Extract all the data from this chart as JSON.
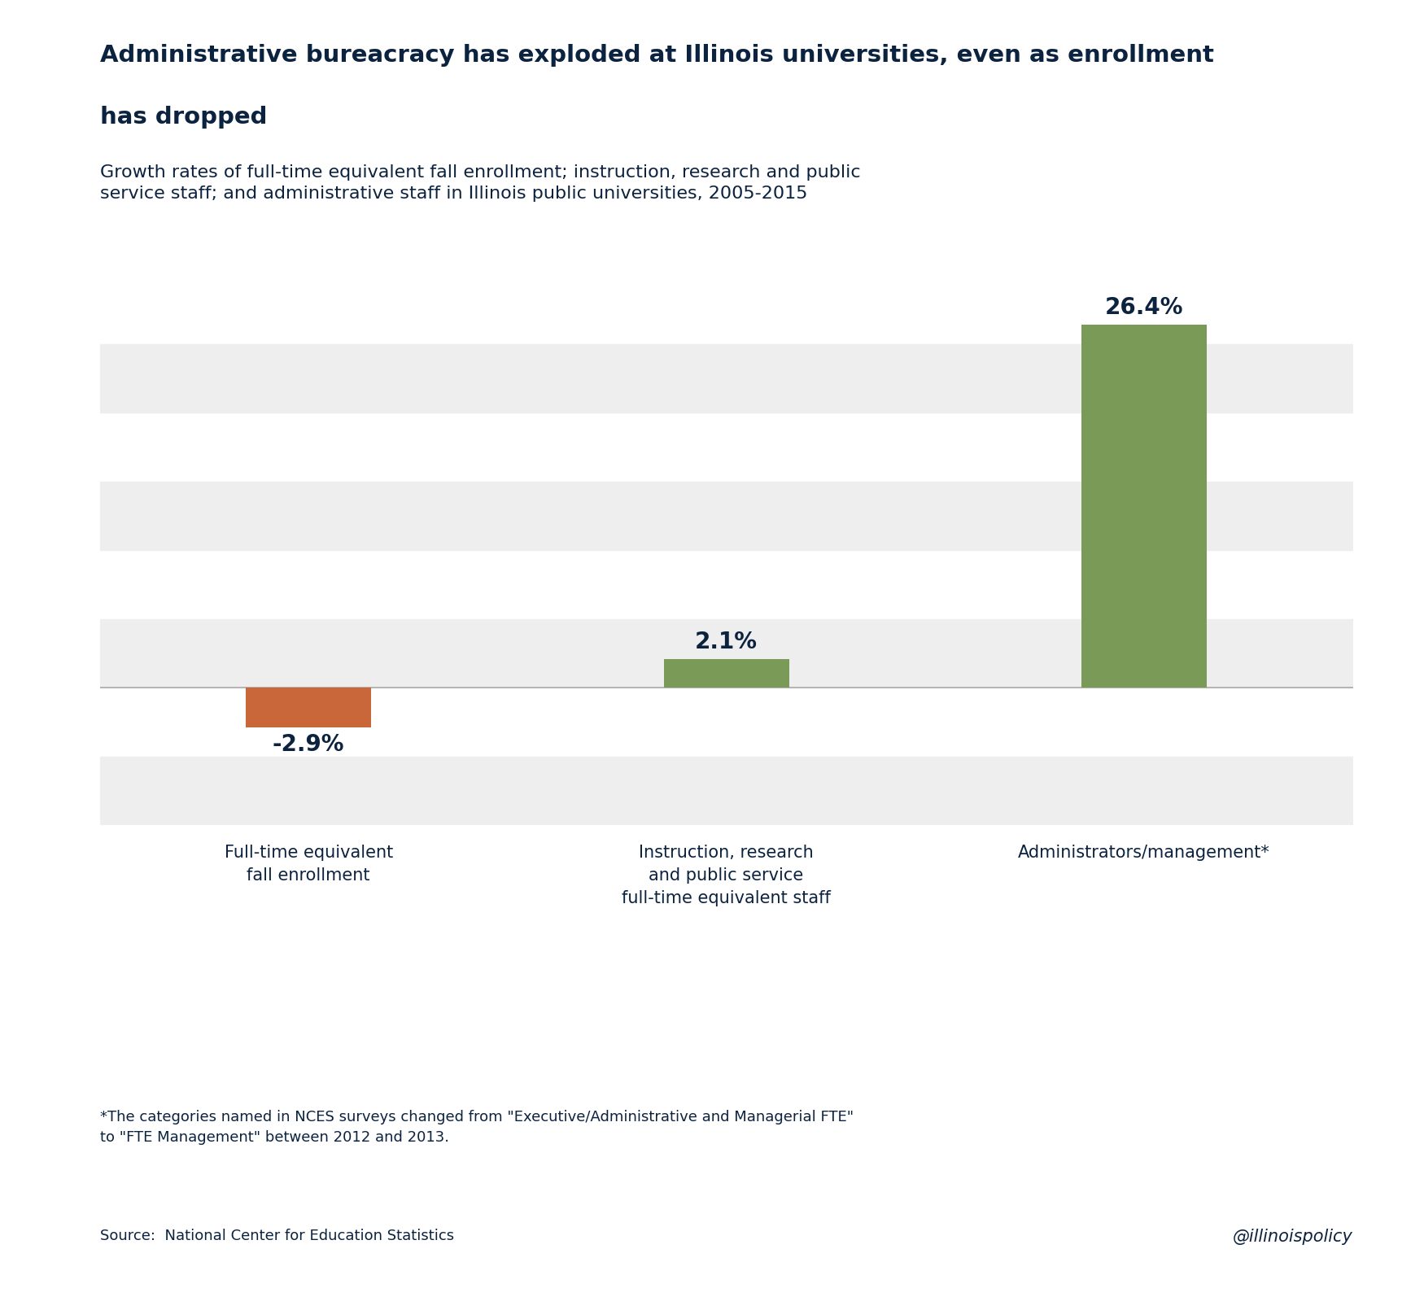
{
  "title_line1": "Administrative bureacracy has exploded at Illinois universities, even as enrollment",
  "title_line2": "has dropped",
  "subtitle": "Growth rates of full-time equivalent fall enrollment; instruction, research and public\nservice staff; and administrative staff in Illinois public universities, 2005-2015",
  "categories": [
    "Full-time equivalent\nfall enrollment",
    "Instruction, research\nand public service\nfull-time equivalent staff",
    "Administrators/management*"
  ],
  "values": [
    -2.9,
    2.1,
    26.4
  ],
  "bar_colors": [
    "#C9673A",
    "#7A9A58",
    "#7A9A58"
  ],
  "value_labels": [
    "-2.9%",
    "2.1%",
    "26.4%"
  ],
  "title_color": "#0C2340",
  "subtitle_color": "#0C2340",
  "label_color": "#0C2340",
  "value_color": "#0C2340",
  "background_color": "#FFFFFF",
  "plot_bg_color": "#FFFFFF",
  "band_color": "#EEEEEE",
  "axis_line_color": "#AAAAAA",
  "footer_note": "*The categories named in NCES surveys changed from \"Executive/Administrative and Managerial FTE\"\nto \"FTE Management\" between 2012 and 2013.",
  "source_text": "Source:  National Center for Education Statistics",
  "watermark": "@illinoispolicy",
  "ylim": [
    -10,
    30
  ],
  "band_ranges": [
    [
      -10,
      -5
    ],
    [
      0,
      5
    ],
    [
      10,
      15
    ],
    [
      20,
      25
    ]
  ],
  "title_fontsize": 21,
  "subtitle_fontsize": 16,
  "label_fontsize": 15,
  "value_fontsize": 20,
  "footer_fontsize": 13,
  "source_fontsize": 13,
  "watermark_fontsize": 15
}
